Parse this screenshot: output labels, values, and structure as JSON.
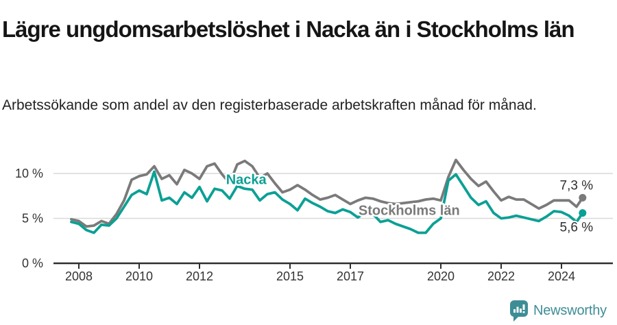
{
  "header": {
    "title": "Lägre ungdomsarbetslöshet i Nacka än i Stockholms län",
    "subtitle": "Arbetssökande som andel av den registerbaserade arbetskraften månad för månad."
  },
  "footer": {
    "brand": "Newsworthy"
  },
  "colors": {
    "nacka": "#0ba095",
    "stockholm": "#7a7a7a",
    "axis": "#2e2e2e",
    "gridline": "#d9d9d9",
    "text": "#333333",
    "brand_teal": "#3e8d96"
  },
  "chart_data": {
    "type": "line",
    "title": "Lägre ungdomsarbetslöshet i Nacka än i Stockholms län",
    "subtitle": "Arbetssökande som andel av den registerbaserade arbetskraften månad för månad.",
    "unit": "% av registerbaserad arbetskraft",
    "grid": "horizontal-only",
    "legend_position": "inline-labels",
    "xlim": [
      2007.7,
      2025.1
    ],
    "ylim": [
      0,
      11.8
    ],
    "x_ticks": [
      2008,
      2010,
      2012,
      2015,
      2017,
      2020,
      2022,
      2024
    ],
    "y_ticks": [
      {
        "value": 0,
        "label": "0 %"
      },
      {
        "value": 5,
        "label": "5 %"
      },
      {
        "value": 10,
        "label": "10 %"
      }
    ],
    "y_gridlines": [
      5,
      10
    ],
    "series": [
      {
        "key": "stockholms-lan",
        "name": "Stockholms län",
        "color": "#7a7a7a",
        "last_value_label": "7,3 %",
        "end_label_position": "above",
        "label_at": [
          2018.95,
          5.4
        ],
        "points": [
          [
            2007.75,
            4.9
          ],
          [
            2008,
            4.7
          ],
          [
            2008.25,
            4.1
          ],
          [
            2008.5,
            4.2
          ],
          [
            2008.75,
            4.7
          ],
          [
            2009,
            4.4
          ],
          [
            2009.25,
            5.5
          ],
          [
            2009.5,
            7.0
          ],
          [
            2009.75,
            9.3
          ],
          [
            2010,
            9.7
          ],
          [
            2010.25,
            9.9
          ],
          [
            2010.5,
            10.8
          ],
          [
            2010.75,
            9.4
          ],
          [
            2011,
            9.8
          ],
          [
            2011.25,
            8.8
          ],
          [
            2011.5,
            10.4
          ],
          [
            2011.75,
            10.0
          ],
          [
            2012,
            9.4
          ],
          [
            2012.25,
            10.8
          ],
          [
            2012.5,
            11.1
          ],
          [
            2012.75,
            9.9
          ],
          [
            2013,
            8.9
          ],
          [
            2013.25,
            11.0
          ],
          [
            2013.5,
            11.4
          ],
          [
            2013.75,
            10.8
          ],
          [
            2014,
            9.5
          ],
          [
            2014.25,
            10.0
          ],
          [
            2014.5,
            8.9
          ],
          [
            2014.75,
            7.9
          ],
          [
            2015,
            8.2
          ],
          [
            2015.25,
            8.7
          ],
          [
            2015.5,
            8.2
          ],
          [
            2015.75,
            7.6
          ],
          [
            2016,
            7.1
          ],
          [
            2016.25,
            7.3
          ],
          [
            2016.5,
            7.6
          ],
          [
            2016.75,
            7.1
          ],
          [
            2017,
            6.6
          ],
          [
            2017.25,
            7.0
          ],
          [
            2017.5,
            7.3
          ],
          [
            2017.75,
            7.2
          ],
          [
            2018,
            6.9
          ],
          [
            2018.25,
            6.7
          ],
          [
            2018.5,
            6.6
          ],
          [
            2018.75,
            6.7
          ],
          [
            2019,
            6.8
          ],
          [
            2019.25,
            6.9
          ],
          [
            2019.5,
            7.1
          ],
          [
            2019.75,
            7.2
          ],
          [
            2020,
            7.0
          ],
          [
            2020.25,
            9.6
          ],
          [
            2020.5,
            11.5
          ],
          [
            2020.75,
            10.4
          ],
          [
            2021,
            9.4
          ],
          [
            2021.25,
            8.6
          ],
          [
            2021.5,
            9.1
          ],
          [
            2021.75,
            8.0
          ],
          [
            2022,
            7.0
          ],
          [
            2022.25,
            7.4
          ],
          [
            2022.5,
            7.1
          ],
          [
            2022.75,
            7.1
          ],
          [
            2023,
            6.6
          ],
          [
            2023.25,
            6.1
          ],
          [
            2023.5,
            6.5
          ],
          [
            2023.75,
            7.0
          ],
          [
            2024,
            7.0
          ],
          [
            2024.25,
            7.0
          ],
          [
            2024.5,
            6.3
          ],
          [
            2024.7,
            7.3
          ]
        ]
      },
      {
        "key": "nacka",
        "name": "Nacka",
        "color": "#0ba095",
        "last_value_label": "5,6 %",
        "end_label_position": "below",
        "label_at": [
          2013.55,
          8.8
        ],
        "points": [
          [
            2007.75,
            4.6
          ],
          [
            2008,
            4.4
          ],
          [
            2008.25,
            3.7
          ],
          [
            2008.5,
            3.4
          ],
          [
            2008.75,
            4.3
          ],
          [
            2009,
            4.2
          ],
          [
            2009.25,
            5.0
          ],
          [
            2009.5,
            6.3
          ],
          [
            2009.75,
            7.6
          ],
          [
            2010,
            8.1
          ],
          [
            2010.25,
            7.7
          ],
          [
            2010.5,
            10.2
          ],
          [
            2010.75,
            7.0
          ],
          [
            2011,
            7.3
          ],
          [
            2011.25,
            6.6
          ],
          [
            2011.5,
            7.9
          ],
          [
            2011.75,
            7.3
          ],
          [
            2012,
            8.5
          ],
          [
            2012.25,
            6.9
          ],
          [
            2012.5,
            8.3
          ],
          [
            2012.75,
            8.1
          ],
          [
            2013,
            7.2
          ],
          [
            2013.25,
            8.6
          ],
          [
            2013.5,
            8.3
          ],
          [
            2013.75,
            8.2
          ],
          [
            2014,
            7.0
          ],
          [
            2014.25,
            7.7
          ],
          [
            2014.5,
            7.9
          ],
          [
            2014.75,
            7.1
          ],
          [
            2015,
            6.6
          ],
          [
            2015.25,
            5.9
          ],
          [
            2015.5,
            7.2
          ],
          [
            2015.75,
            6.7
          ],
          [
            2016,
            6.3
          ],
          [
            2016.25,
            5.8
          ],
          [
            2016.5,
            5.6
          ],
          [
            2016.75,
            6.0
          ],
          [
            2017,
            5.7
          ],
          [
            2017.25,
            5.1
          ],
          [
            2017.5,
            5.7
          ],
          [
            2017.75,
            5.5
          ],
          [
            2018,
            4.6
          ],
          [
            2018.25,
            4.8
          ],
          [
            2018.5,
            4.4
          ],
          [
            2018.75,
            4.1
          ],
          [
            2019,
            3.8
          ],
          [
            2019.25,
            3.4
          ],
          [
            2019.5,
            3.4
          ],
          [
            2019.75,
            4.4
          ],
          [
            2020,
            5.0
          ],
          [
            2020.25,
            9.2
          ],
          [
            2020.5,
            9.9
          ],
          [
            2020.75,
            8.6
          ],
          [
            2021,
            7.3
          ],
          [
            2021.25,
            6.5
          ],
          [
            2021.5,
            6.9
          ],
          [
            2021.75,
            5.6
          ],
          [
            2022,
            5.0
          ],
          [
            2022.25,
            5.1
          ],
          [
            2022.5,
            5.3
          ],
          [
            2022.75,
            5.1
          ],
          [
            2023,
            4.9
          ],
          [
            2023.25,
            4.7
          ],
          [
            2023.5,
            5.2
          ],
          [
            2023.75,
            5.8
          ],
          [
            2024,
            5.7
          ],
          [
            2024.25,
            5.3
          ],
          [
            2024.5,
            4.6
          ],
          [
            2024.7,
            5.6
          ]
        ]
      }
    ]
  }
}
